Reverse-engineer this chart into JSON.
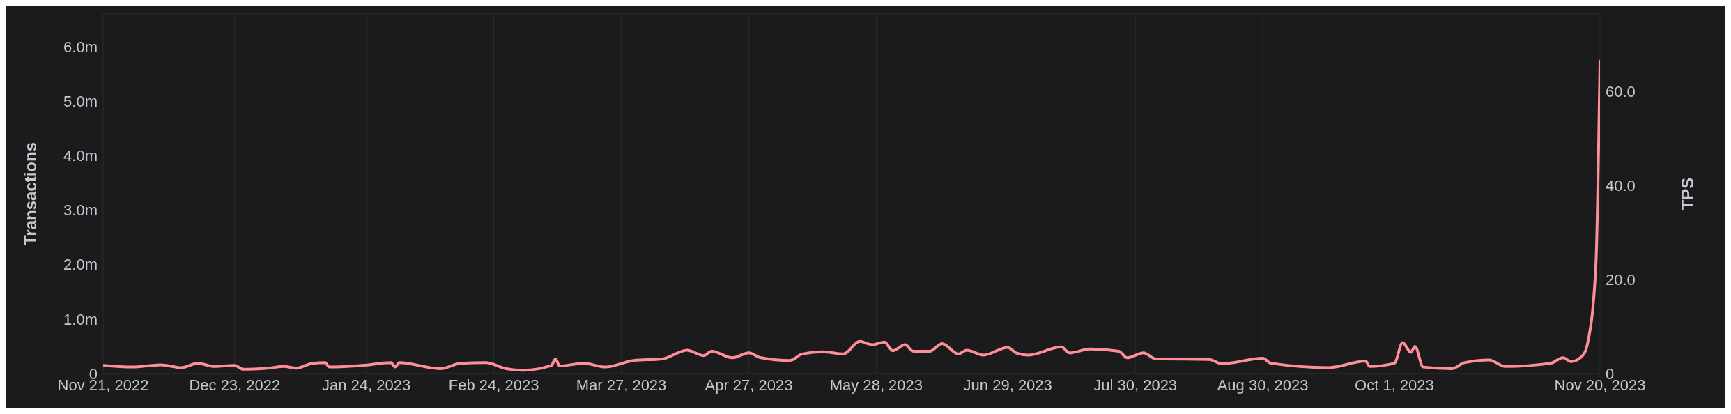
{
  "chart_data": {
    "type": "line",
    "ylabel": "Transactions",
    "y2label": "TPS",
    "grid": true,
    "legend": false,
    "line_style": "solid",
    "x": [
      "2022-11-21",
      "2022-11-28",
      "2022-12-05",
      "2022-12-10",
      "2022-12-14",
      "2022-12-18",
      "2022-12-23",
      "2022-12-25",
      "2022-12-31",
      "2023-01-04",
      "2023-01-07",
      "2023-01-11",
      "2023-01-14",
      "2023-01-15",
      "2023-01-23",
      "2023-01-30",
      "2023-01-31",
      "2023-02-01",
      "2023-02-11",
      "2023-02-16",
      "2023-02-22",
      "2023-02-27",
      "2023-03-03",
      "2023-03-10",
      "2023-03-11",
      "2023-03-12",
      "2023-03-18",
      "2023-03-23",
      "2023-03-30",
      "2023-04-06",
      "2023-04-12",
      "2023-04-16",
      "2023-04-18",
      "2023-04-23",
      "2023-04-27",
      "2023-04-30",
      "2023-05-07",
      "2023-05-10",
      "2023-05-15",
      "2023-05-20",
      "2023-05-24",
      "2023-05-27",
      "2023-05-30",
      "2023-06-01",
      "2023-06-04",
      "2023-06-06",
      "2023-06-10",
      "2023-06-13",
      "2023-06-17",
      "2023-06-19",
      "2023-06-23",
      "2023-06-29",
      "2023-07-01",
      "2023-07-04",
      "2023-07-12",
      "2023-07-14",
      "2023-07-19",
      "2023-07-26",
      "2023-07-28",
      "2023-08-01",
      "2023-08-04",
      "2023-08-06",
      "2023-08-17",
      "2023-08-20",
      "2023-08-30",
      "2023-09-01",
      "2023-09-15",
      "2023-09-24",
      "2023-09-25",
      "2023-10-01",
      "2023-10-03",
      "2023-10-05",
      "2023-10-06",
      "2023-10-08",
      "2023-10-15",
      "2023-10-18",
      "2023-10-24",
      "2023-10-28",
      "2023-11-08",
      "2023-11-11",
      "2023-11-13",
      "2023-11-16",
      "2023-11-17",
      "2023-11-19",
      "2023-11-20"
    ],
    "series": [
      {
        "color": "#ff8f96",
        "values": [
          150000,
          120000,
          160000,
          110000,
          190000,
          130000,
          150000,
          80000,
          100000,
          130000,
          100000,
          190000,
          200000,
          120000,
          150000,
          200000,
          120000,
          200000,
          90000,
          190000,
          200000,
          90000,
          60000,
          150000,
          270000,
          140000,
          190000,
          120000,
          240000,
          270000,
          430000,
          330000,
          410000,
          290000,
          380000,
          290000,
          240000,
          360000,
          400000,
          360000,
          590000,
          530000,
          580000,
          420000,
          530000,
          410000,
          410000,
          550000,
          360000,
          430000,
          340000,
          480000,
          380000,
          340000,
          490000,
          380000,
          450000,
          410000,
          290000,
          380000,
          270000,
          270000,
          260000,
          180000,
          280000,
          190000,
          110000,
          230000,
          130000,
          190000,
          570000,
          390000,
          500000,
          120000,
          90000,
          200000,
          250000,
          130000,
          190000,
          290000,
          220000,
          350000,
          560000,
          2000000,
          5760000
        ]
      }
    ],
    "xlim": [
      "2022-11-21",
      "2023-11-20"
    ],
    "xticks": [
      {
        "value": "2022-11-21",
        "label": "Nov 21, 2022"
      },
      {
        "value": "2022-12-23",
        "label": "Dec 23, 2022"
      },
      {
        "value": "2023-01-24",
        "label": "Jan 24, 2023"
      },
      {
        "value": "2023-02-24",
        "label": "Feb 24, 2023"
      },
      {
        "value": "2023-03-27",
        "label": "Mar 27, 2023"
      },
      {
        "value": "2023-04-27",
        "label": "Apr 27, 2023"
      },
      {
        "value": "2023-05-28",
        "label": "May 28, 2023"
      },
      {
        "value": "2023-06-29",
        "label": "Jun 29, 2023"
      },
      {
        "value": "2023-07-30",
        "label": "Jul 30, 2023"
      },
      {
        "value": "2023-08-30",
        "label": "Aug 30, 2023"
      },
      {
        "value": "2023-10-01",
        "label": "Oct 1, 2023"
      },
      {
        "value": "2023-11-20",
        "label": "Nov 20, 2023"
      }
    ],
    "ylim": [
      0,
      6600000
    ],
    "yticks": [
      0,
      {
        "value": 1000000,
        "label": "1.0m"
      },
      {
        "value": 2000000,
        "label": "2.0m"
      },
      {
        "value": 3000000,
        "label": "3.0m"
      },
      {
        "value": 4000000,
        "label": "4.0m"
      },
      {
        "value": 5000000,
        "label": "5.0m"
      },
      {
        "value": 6000000,
        "label": "6.0m"
      }
    ],
    "y2lim": [
      0,
      76.4
    ],
    "y2ticks": [
      0,
      {
        "value": 20,
        "label": "20.0"
      },
      {
        "value": 40,
        "label": "40.0"
      },
      {
        "value": 60,
        "label": "60.0"
      }
    ]
  }
}
